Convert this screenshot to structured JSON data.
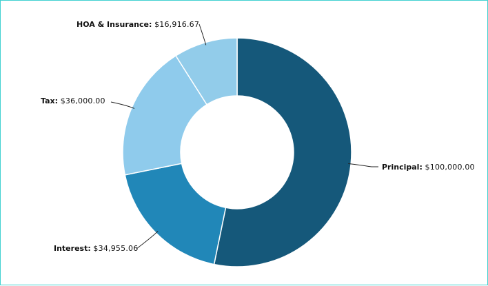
{
  "chart_data": {
    "type": "pie",
    "style": "donut",
    "title": "",
    "categories": [
      "Principal",
      "Interest",
      "Tax",
      "HOA & Insurance"
    ],
    "values": [
      100000.0,
      34955.06,
      36000.0,
      16916.67
    ],
    "value_labels": [
      "$100,000.00",
      "$34,955.06",
      "$36,000.00",
      "$16,916.67"
    ],
    "colors": [
      "#15587a",
      "#2187b8",
      "#8fcbec",
      "#92ccea"
    ],
    "start": "12 o'clock",
    "direction": "clockwise",
    "legend": "none",
    "label_placement": "outside with leader lines"
  }
}
